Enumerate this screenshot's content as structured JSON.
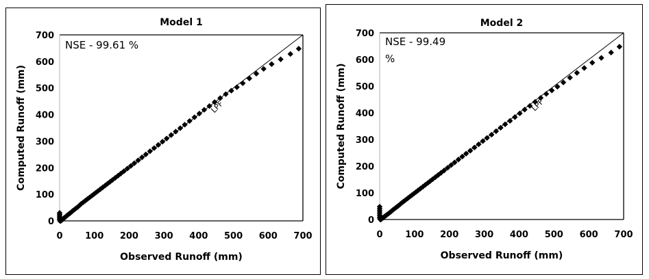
{
  "chart_data": [
    {
      "type": "scatter",
      "title": "Model 1",
      "xlabel": "Observed Runoff (mm)",
      "ylabel": "Computed Runoff (mm)",
      "xlim": [
        0,
        700
      ],
      "ylim": [
        0,
        700
      ],
      "xticks": [
        "0",
        "100",
        "200",
        "300",
        "400",
        "500",
        "600",
        "700"
      ],
      "yticks": [
        "0",
        "100",
        "200",
        "300",
        "400",
        "500",
        "600",
        "700"
      ],
      "grid": false,
      "annotation": "NSE - 99.61 %",
      "reference_line": {
        "label": "LPF",
        "x": [
          0,
          700
        ],
        "y": [
          0,
          700
        ]
      },
      "marker": "diamond",
      "color": "#000000",
      "series": [
        {
          "name": "Model 1",
          "x": [
            0,
            0,
            0,
            0,
            0,
            1,
            1,
            2,
            3,
            4,
            5,
            6,
            8,
            10,
            12,
            15,
            18,
            21,
            25,
            29,
            33,
            37,
            42,
            47,
            52,
            57,
            62,
            68,
            74,
            80,
            86,
            92,
            98,
            104,
            110,
            117,
            124,
            131,
            138,
            145,
            152,
            160,
            168,
            176,
            185,
            195,
            205,
            215,
            226,
            237,
            248,
            260,
            272,
            284,
            296,
            308,
            321,
            334,
            347,
            360,
            374,
            388,
            402,
            416,
            431,
            446,
            462,
            478,
            494,
            510,
            527,
            546,
            566,
            587,
            610,
            636,
            664,
            688
          ],
          "y": [
            30,
            24,
            18,
            12,
            6,
            3,
            0,
            0,
            0,
            1,
            2,
            3,
            5,
            7,
            10,
            13,
            16,
            20,
            24,
            28,
            32,
            37,
            42,
            47,
            52,
            58,
            64,
            70,
            76,
            82,
            88,
            94,
            100,
            106,
            112,
            119,
            126,
            133,
            140,
            147,
            154,
            162,
            170,
            178,
            187,
            197,
            207,
            217,
            228,
            239,
            250,
            262,
            274,
            286,
            298,
            310,
            323,
            336,
            349,
            362,
            376,
            390,
            404,
            418,
            432,
            447,
            462,
            477,
            490,
            503,
            518,
            536,
            554,
            572,
            590,
            608,
            628,
            648
          ]
        }
      ]
    },
    {
      "type": "scatter",
      "title": "Model 2",
      "xlabel": "Observed Runoff (mm)",
      "ylabel": "Computed Runoff (mm)",
      "xlim": [
        0,
        700
      ],
      "ylim": [
        0,
        700
      ],
      "xticks": [
        "0",
        "100",
        "200",
        "300",
        "400",
        "500",
        "600",
        "700"
      ],
      "yticks": [
        "0",
        "100",
        "200",
        "300",
        "400",
        "500",
        "600",
        "700"
      ],
      "grid": false,
      "annotation_lines": [
        "NSE - 99.49",
        "%"
      ],
      "reference_line": {
        "label": "LPF",
        "x": [
          0,
          700
        ],
        "y": [
          0,
          700
        ]
      },
      "marker": "diamond",
      "color": "#000000",
      "series": [
        {
          "name": "Model 2",
          "x": [
            0,
            0,
            0,
            0,
            0,
            0,
            1,
            2,
            3,
            4,
            5,
            6,
            8,
            10,
            12,
            15,
            18,
            21,
            25,
            29,
            33,
            37,
            42,
            47,
            52,
            57,
            62,
            68,
            74,
            80,
            86,
            92,
            98,
            104,
            110,
            117,
            124,
            131,
            138,
            145,
            152,
            160,
            168,
            176,
            185,
            195,
            205,
            215,
            226,
            237,
            248,
            260,
            272,
            284,
            296,
            308,
            321,
            334,
            347,
            360,
            374,
            388,
            402,
            416,
            431,
            446,
            462,
            478,
            494,
            510,
            527,
            546,
            566,
            587,
            610,
            636,
            664,
            688
          ],
          "y": [
            48,
            40,
            32,
            24,
            16,
            8,
            3,
            0,
            0,
            1,
            2,
            3,
            5,
            7,
            9,
            12,
            15,
            18,
            22,
            26,
            30,
            35,
            40,
            45,
            50,
            55,
            61,
            67,
            73,
            79,
            85,
            91,
            97,
            103,
            109,
            116,
            123,
            130,
            137,
            144,
            151,
            159,
            167,
            175,
            184,
            194,
            204,
            214,
            225,
            236,
            247,
            258,
            270,
            282,
            294,
            306,
            318,
            331,
            344,
            357,
            370,
            384,
            398,
            412,
            426,
            441,
            456,
            471,
            484,
            498,
            514,
            532,
            550,
            568,
            588,
            606,
            626,
            648
          ]
        }
      ]
    }
  ]
}
